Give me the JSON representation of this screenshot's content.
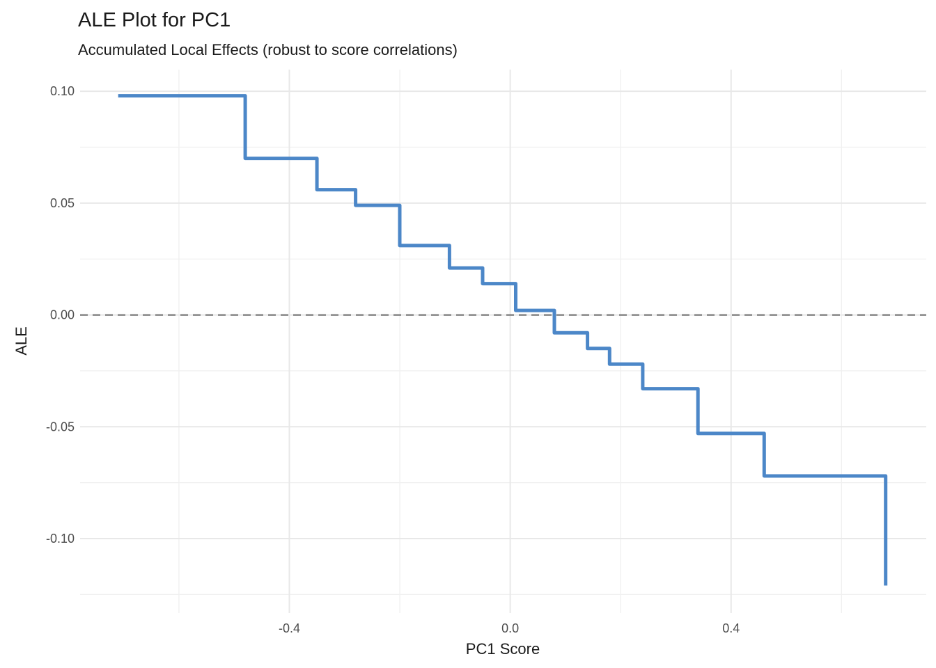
{
  "chart_data": {
    "type": "line",
    "step": "hv",
    "title": "ALE Plot for PC1",
    "subtitle": "Accumulated Local Effects (robust to score correlations)",
    "xlabel": "PC1 Score",
    "ylabel": "ALE",
    "xlim": [
      -0.779,
      0.7535
    ],
    "ylim": [
      -0.1333,
      0.1097
    ],
    "grid": true,
    "legend": "none",
    "x_major_ticks": [
      {
        "value": -0.4,
        "label": "-0.4"
      },
      {
        "value": 0.0,
        "label": "0.0"
      },
      {
        "value": 0.4,
        "label": "0.4"
      }
    ],
    "y_major_ticks": [
      {
        "value": 0.1,
        "label": "0.10"
      },
      {
        "value": 0.05,
        "label": "0.05"
      },
      {
        "value": 0.0,
        "label": "0.00"
      },
      {
        "value": -0.05,
        "label": "-0.05"
      },
      {
        "value": -0.1,
        "label": "-0.10"
      }
    ],
    "x_minor_ticks": [
      -0.6,
      -0.2,
      0.2,
      0.6
    ],
    "y_minor_ticks": [
      0.075,
      0.025,
      -0.025,
      -0.075,
      -0.125
    ],
    "reference_line": {
      "y": 0.0,
      "style": "dashed"
    },
    "series": [
      {
        "name": "ALE",
        "points": [
          [
            -0.71,
            0.098
          ],
          [
            -0.48,
            0.07
          ],
          [
            -0.35,
            0.056
          ],
          [
            -0.28,
            0.049
          ],
          [
            -0.2,
            0.031
          ],
          [
            -0.11,
            0.021
          ],
          [
            -0.05,
            0.014
          ],
          [
            0.01,
            0.002
          ],
          [
            0.08,
            -0.008
          ],
          [
            0.14,
            -0.015
          ],
          [
            0.18,
            -0.022
          ],
          [
            0.24,
            -0.033
          ],
          [
            0.34,
            -0.053
          ],
          [
            0.46,
            -0.072
          ],
          [
            0.68,
            -0.121
          ]
        ]
      }
    ],
    "colors": {
      "line": "#4C87C8",
      "reference_line": "#878787",
      "grid_major": "#E8E8E8",
      "grid_minor": "#F0F0F0",
      "title_text": "#1A1A1A",
      "axis_title_text": "#1A1A1A",
      "tick_label_text": "#4D4D4D",
      "background": "#FFFFFF"
    }
  }
}
